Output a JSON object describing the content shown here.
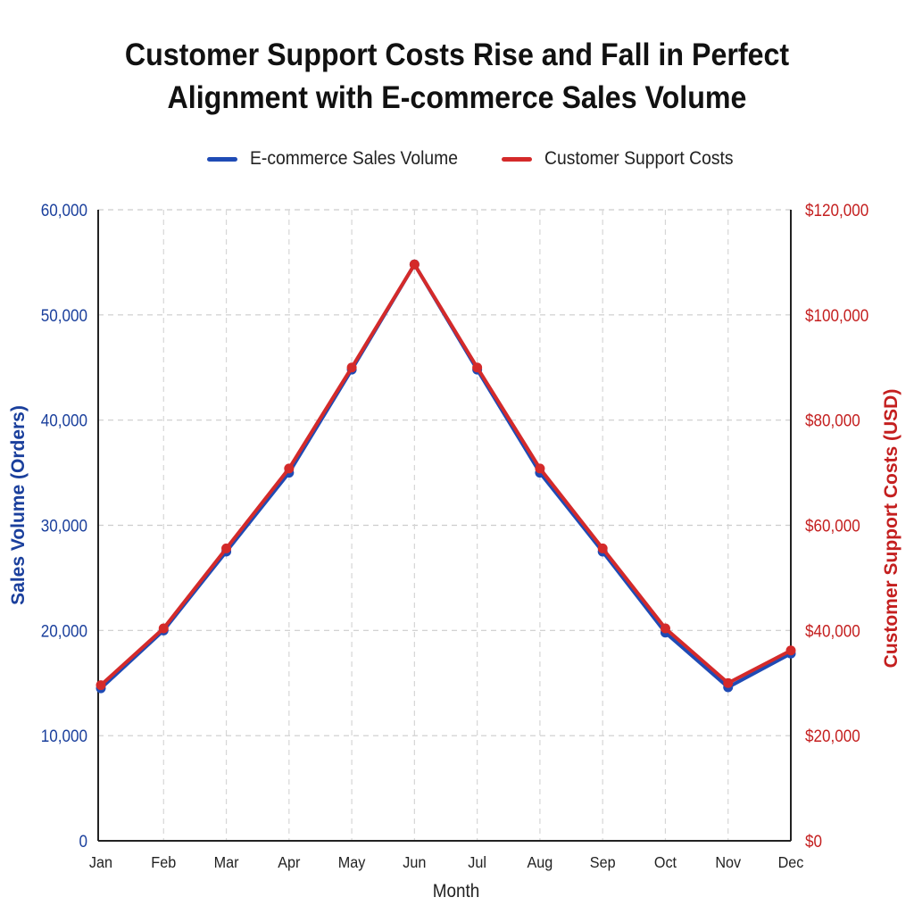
{
  "chart_data": {
    "type": "line",
    "title_lines": [
      "Customer Support Costs Rise and Fall in Perfect",
      "Alignment with E-commerce Sales Volume"
    ],
    "xlabel": "Month",
    "ylabel_left": "Sales Volume (Orders)",
    "ylabel_right": "Customer Support Costs (USD)",
    "categories": [
      "Jan",
      "Feb",
      "Mar",
      "Apr",
      "May",
      "Jun",
      "Jul",
      "Aug",
      "Sep",
      "Oct",
      "Nov",
      "Dec"
    ],
    "y_left_ticks": [
      "0",
      "10,000",
      "20,000",
      "30,000",
      "40,000",
      "50,000",
      "60,000"
    ],
    "y_right_ticks": [
      "$0",
      "$20,000",
      "$40,000",
      "$60,000",
      "$80,000",
      "$100,000",
      "$120,000"
    ],
    "ylim_left": [
      0,
      60000
    ],
    "ylim_right": [
      0,
      120000
    ],
    "grid": true,
    "legend_position": "top-center",
    "series": [
      {
        "name": "E-commerce Sales Volume",
        "axis": "left",
        "color": "#1f4bb5",
        "values": [
          14500,
          20000,
          27500,
          35000,
          44800,
          54800,
          44800,
          35000,
          27500,
          19800,
          14600,
          17800
        ]
      },
      {
        "name": "Customer Support Costs",
        "axis": "right",
        "color": "#d42a2a",
        "values": [
          29600,
          40400,
          55600,
          70800,
          90000,
          109600,
          90000,
          70800,
          55600,
          40400,
          30000,
          36200
        ]
      }
    ]
  }
}
